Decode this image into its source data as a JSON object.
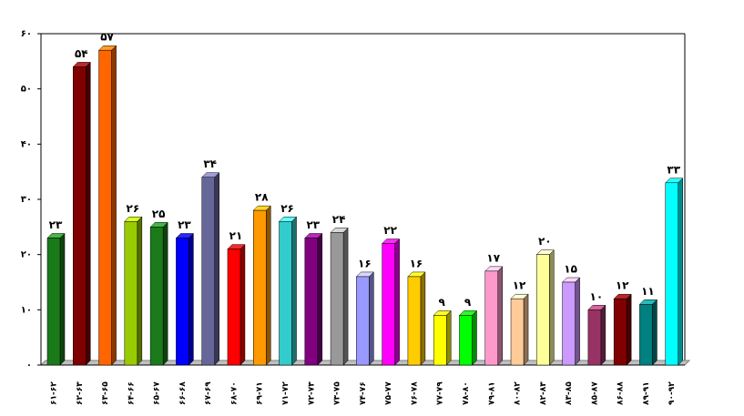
{
  "chart_data": {
    "type": "bar3d",
    "categories": [
      "۶۱-۶۲",
      "۶۲-۶۳",
      "۶۳-۶۵",
      "۶۴-۶۶",
      "۶۵-۶۷",
      "۶۶-۶۸",
      "۶۷-۶۹",
      "۶۸-۷۰",
      "۶۹-۷۱",
      "۷۱-۷۲",
      "۷۲-۷۳",
      "۷۳-۷۵",
      "۷۴-۷۶",
      "۷۵-۷۷",
      "۷۶-۷۸",
      "۷۷-۷۹",
      "۷۸-۸۰",
      "۷۹-۸۱",
      "۸۰-۸۲",
      "۸۲-۸۳",
      "۸۳-۸۵",
      "۸۵-۸۷",
      "۸۶-۸۸",
      "۸۹-۹۱",
      "۹۰-۹۲"
    ],
    "values": [
      23,
      54,
      57,
      26,
      25,
      23,
      34,
      21,
      28,
      26,
      23,
      24,
      16,
      22,
      16,
      9,
      9,
      17,
      12,
      20,
      15,
      10,
      12,
      11,
      33
    ],
    "value_labels": [
      "۲۳",
      "۵۴",
      "۵۷",
      "۲۶",
      "۲۵",
      "۲۳",
      "۳۴",
      "۲۱",
      "۲۸",
      "۲۶",
      "۲۳",
      "۲۴",
      "۱۶",
      "۲۲",
      "۱۶",
      "۹",
      "۹",
      "۱۷",
      "۱۲",
      "۲۰",
      "۱۵",
      "۱۰",
      "۱۲",
      "۱۱",
      "۳۳"
    ],
    "colors": [
      "#1a7a1a",
      "#800000",
      "#ff6600",
      "#99cc00",
      "#1a7a1a",
      "#0000ff",
      "#666699",
      "#ff0000",
      "#ff9900",
      "#33cccc",
      "#800080",
      "#999999",
      "#9999ff",
      "#ff00ff",
      "#ffcc00",
      "#ffff00",
      "#00ff00",
      "#ff99cc",
      "#ffcc99",
      "#ffff99",
      "#cc99ff",
      "#993366",
      "#800000",
      "#008080",
      "#00ffff"
    ],
    "ylim": [
      0,
      60
    ],
    "yticks": [
      {
        "value": 0,
        "label": "۰"
      },
      {
        "value": 10,
        "label": "۱۰"
      },
      {
        "value": 20,
        "label": "۲۰"
      },
      {
        "value": 30,
        "label": "۳۰"
      },
      {
        "value": 40,
        "label": "۴۰"
      },
      {
        "value": 50,
        "label": "۵۰"
      },
      {
        "value": 60,
        "label": "۶۰"
      }
    ]
  }
}
